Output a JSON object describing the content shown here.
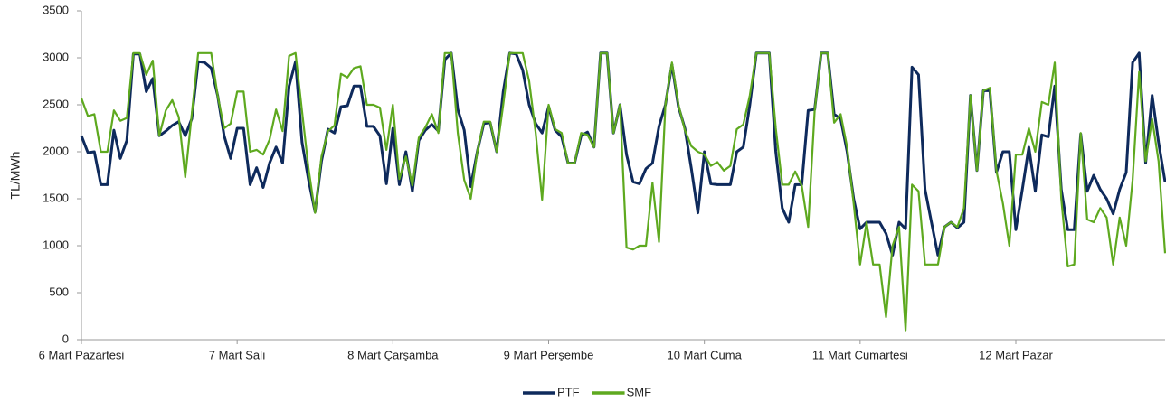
{
  "chart_data": {
    "type": "line",
    "y_label": "TL/MWh",
    "categories": [
      "6 Mart Pazartesi",
      null,
      null,
      null,
      null,
      null,
      null,
      null,
      null,
      null,
      null,
      null,
      null,
      null,
      null,
      null,
      null,
      null,
      null,
      null,
      null,
      null,
      null,
      null,
      "7 Mart Salı",
      null,
      null,
      null,
      null,
      null,
      null,
      null,
      null,
      null,
      null,
      null,
      null,
      null,
      null,
      null,
      null,
      null,
      null,
      null,
      null,
      null,
      null,
      null,
      "8 Mart Çarşamba",
      null,
      null,
      null,
      null,
      null,
      null,
      null,
      null,
      null,
      null,
      null,
      null,
      null,
      null,
      null,
      null,
      null,
      null,
      null,
      null,
      null,
      null,
      null,
      "9 Mart Perşembe",
      null,
      null,
      null,
      null,
      null,
      null,
      null,
      null,
      null,
      null,
      null,
      null,
      null,
      null,
      null,
      null,
      null,
      null,
      null,
      null,
      null,
      null,
      null,
      "10 Mart Cuma",
      null,
      null,
      null,
      null,
      null,
      null,
      null,
      null,
      null,
      null,
      null,
      null,
      null,
      null,
      null,
      null,
      null,
      null,
      null,
      null,
      null,
      null,
      null,
      "11 Mart Cumartesi",
      null,
      null,
      null,
      null,
      null,
      null,
      null,
      null,
      null,
      null,
      null,
      null,
      null,
      null,
      null,
      null,
      null,
      null,
      null,
      null,
      null,
      null,
      null,
      "12 Mart Pazar",
      null,
      null,
      null,
      null,
      null,
      null,
      null,
      null,
      null,
      null,
      null,
      null,
      null,
      null,
      null,
      null,
      null,
      null,
      null,
      null,
      null,
      null,
      null
    ],
    "series": [
      {
        "name": "PTF",
        "color": "#0e2a5c",
        "values": [
          2170,
          1990,
          2000,
          1650,
          1650,
          2230,
          1930,
          2120,
          3040,
          3040,
          2640,
          2780,
          2170,
          2220,
          2280,
          2320,
          2170,
          2350,
          2960,
          2950,
          2890,
          2600,
          2170,
          1930,
          2250,
          2250,
          1650,
          1830,
          1620,
          1880,
          2050,
          1880,
          2700,
          2960,
          2100,
          1700,
          1360,
          1900,
          2240,
          2200,
          2480,
          2490,
          2700,
          2700,
          2270,
          2270,
          2170,
          1660,
          2250,
          1650,
          2000,
          1580,
          2120,
          2230,
          2290,
          2220,
          2980,
          3050,
          2450,
          2230,
          1630,
          2000,
          2300,
          2310,
          2000,
          2640,
          3050,
          3040,
          2870,
          2500,
          2300,
          2200,
          2480,
          2230,
          2160,
          1880,
          1880,
          2170,
          2210,
          2050,
          3050,
          3050,
          2200,
          2500,
          1970,
          1680,
          1660,
          1820,
          1880,
          2270,
          2500,
          2930,
          2480,
          2250,
          1820,
          1350,
          2000,
          1660,
          1650,
          1650,
          1650,
          2000,
          2050,
          2500,
          3050,
          3050,
          3050,
          2000,
          1400,
          1250,
          1650,
          1650,
          2440,
          2450,
          3050,
          3050,
          2400,
          2350,
          2000,
          1500,
          1180,
          1250,
          1250,
          1250,
          1130,
          900,
          1250,
          1180,
          2900,
          2820,
          1600,
          1250,
          900,
          1200,
          1250,
          1190,
          1250,
          2600,
          1800,
          2650,
          2650,
          1780,
          2000,
          2000,
          1170,
          1600,
          2050,
          1580,
          2180,
          2160,
          2700,
          1600,
          1170,
          1170,
          2190,
          1580,
          1750,
          1600,
          1500,
          1340,
          1600,
          1780,
          2950,
          3050,
          1880,
          2600,
          2100,
          1680
        ]
      },
      {
        "name": "SMF",
        "color": "#5ea91f",
        "values": [
          2570,
          2380,
          2400,
          2000,
          2000,
          2440,
          2330,
          2360,
          3050,
          3050,
          2820,
          2970,
          2170,
          2440,
          2550,
          2370,
          1730,
          2400,
          3050,
          3050,
          3050,
          2600,
          2250,
          2300,
          2640,
          2640,
          2000,
          2020,
          1970,
          2130,
          2450,
          2220,
          3020,
          3050,
          2430,
          1820,
          1350,
          1950,
          2220,
          2280,
          2830,
          2790,
          2890,
          2910,
          2500,
          2500,
          2470,
          2020,
          2500,
          1710,
          1950,
          1640,
          2150,
          2260,
          2400,
          2200,
          3050,
          3050,
          2200,
          1700,
          1500,
          2000,
          2320,
          2320,
          2000,
          2500,
          3050,
          3050,
          3050,
          2750,
          2200,
          1490,
          2500,
          2240,
          2200,
          1880,
          1880,
          2200,
          2180,
          2050,
          3050,
          3050,
          2200,
          2500,
          980,
          960,
          1000,
          1000,
          1670,
          1040,
          2500,
          2950,
          2500,
          2230,
          2060,
          2000,
          1970,
          1850,
          1890,
          1800,
          1850,
          2240,
          2290,
          2600,
          3050,
          3050,
          3050,
          2250,
          1650,
          1650,
          1790,
          1640,
          1200,
          2440,
          3050,
          3050,
          2310,
          2400,
          2050,
          1450,
          800,
          1250,
          800,
          800,
          240,
          1000,
          1200,
          100,
          1650,
          1580,
          800,
          800,
          800,
          1200,
          1250,
          1200,
          1400,
          2600,
          1800,
          2650,
          2680,
          1800,
          1450,
          1000,
          1970,
          1970,
          2250,
          2000,
          2530,
          2500,
          2950,
          1500,
          780,
          800,
          2200,
          1280,
          1250,
          1400,
          1300,
          800,
          1300,
          1000,
          1700,
          2850,
          1900,
          2350,
          1900,
          920
        ]
      }
    ],
    "ylim": [
      0,
      3500
    ],
    "yticks": [
      0,
      500,
      1000,
      1500,
      2000,
      2500,
      3000,
      3500
    ],
    "grid": false,
    "legend": "bottom"
  }
}
